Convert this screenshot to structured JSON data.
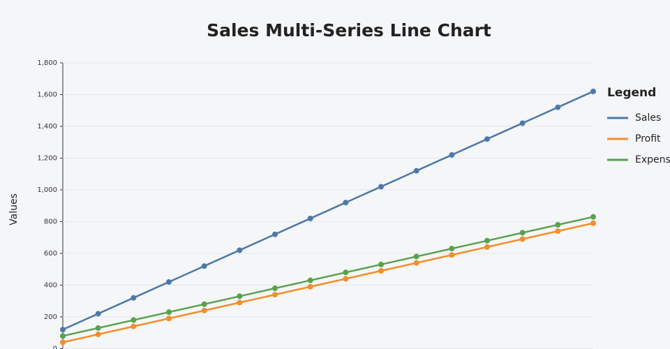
{
  "chart_data": {
    "type": "line",
    "title": "Sales Multi-Series Line Chart",
    "y_label": "Values",
    "legend_title": "Legend",
    "legend": "right",
    "grid": true,
    "series": [
      {
        "name": "Sales",
        "color": "#4e79a7",
        "values": [
          120,
          220,
          320,
          420,
          520,
          620,
          720,
          820,
          920,
          1020,
          1120,
          1220,
          1320,
          1420,
          1520,
          1620
        ]
      },
      {
        "name": "Profit",
        "color": "#f28e2b",
        "values": [
          40,
          90,
          140,
          190,
          240,
          290,
          340,
          390,
          440,
          490,
          540,
          590,
          640,
          690,
          740,
          790
        ]
      },
      {
        "name": "Expenses",
        "color": "#59a14f",
        "values": [
          80,
          130,
          180,
          230,
          280,
          330,
          380,
          430,
          480,
          530,
          580,
          630,
          680,
          730,
          780,
          830
        ]
      }
    ],
    "ylim": [
      0,
      1800
    ],
    "yticks": [
      0,
      200,
      400,
      600,
      800,
      {
        "value": 1000,
        "label": "1,000"
      },
      {
        "value": 1200,
        "label": "1,200"
      },
      {
        "value": 1400,
        "label": "1,400"
      },
      {
        "value": 1600,
        "label": "1,600"
      },
      {
        "value": 1800,
        "label": "1,800"
      }
    ]
  }
}
